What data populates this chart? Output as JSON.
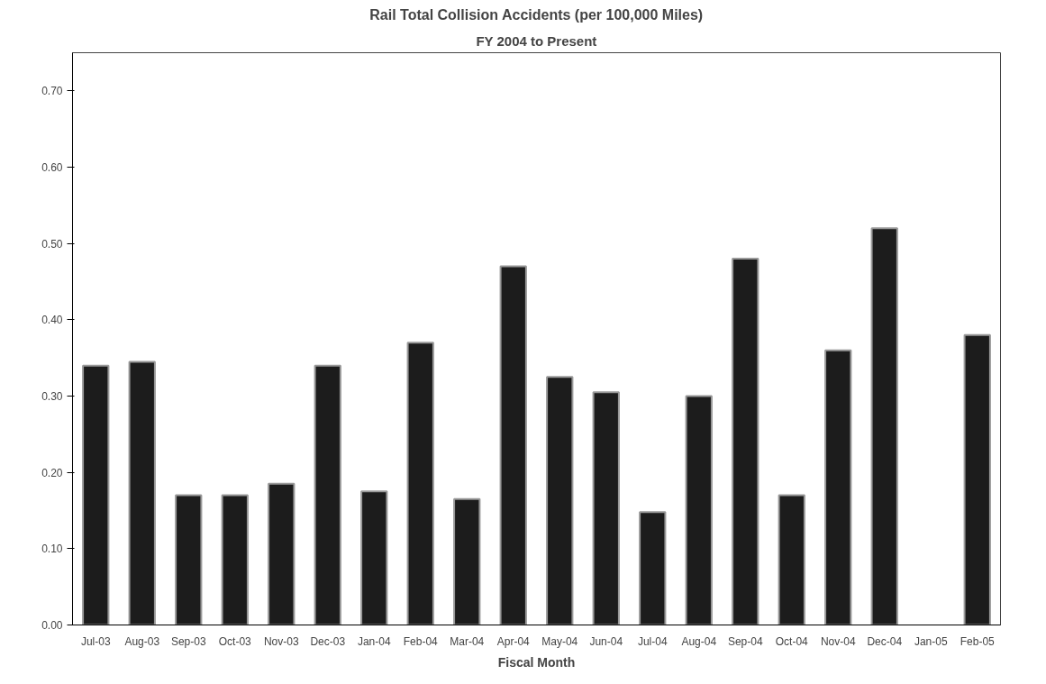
{
  "chart_data": {
    "type": "bar",
    "title": "Rail Total Collision Accidents (per 100,000 Miles)",
    "subtitle": "FY 2004 to Present",
    "xlabel": "Fiscal Month",
    "categories": [
      "Jul-03",
      "Aug-03",
      "Sep-03",
      "Oct-03",
      "Nov-03",
      "Dec-03",
      "Jan-04",
      "Feb-04",
      "Mar-04",
      "Apr-04",
      "May-04",
      "Jun-04",
      "Jul-04",
      "Aug-04",
      "Sep-04",
      "Oct-04",
      "Nov-04",
      "Dec-04",
      "Jan-05",
      "Feb-05"
    ],
    "values": [
      0.34,
      0.345,
      0.17,
      0.17,
      0.185,
      0.34,
      0.175,
      0.37,
      0.165,
      0.47,
      0.325,
      0.305,
      0.148,
      0.3,
      0.48,
      0.17,
      0.36,
      0.52,
      null,
      0.38
    ],
    "color": "#1c1c1c",
    "ylim": [
      0,
      0.75
    ],
    "yticks": [
      {
        "value": 0,
        "label": "0.00"
      },
      {
        "value": 0.1,
        "label": "0.10"
      },
      {
        "value": 0.2,
        "label": "0.20"
      },
      {
        "value": 0.3,
        "label": "0.30"
      },
      {
        "value": 0.4,
        "label": "0.40"
      },
      {
        "value": 0.5,
        "label": "0.50"
      },
      {
        "value": 0.6,
        "label": "0.60"
      },
      {
        "value": 0.7,
        "label": "0.70"
      }
    ],
    "grid": false
  }
}
